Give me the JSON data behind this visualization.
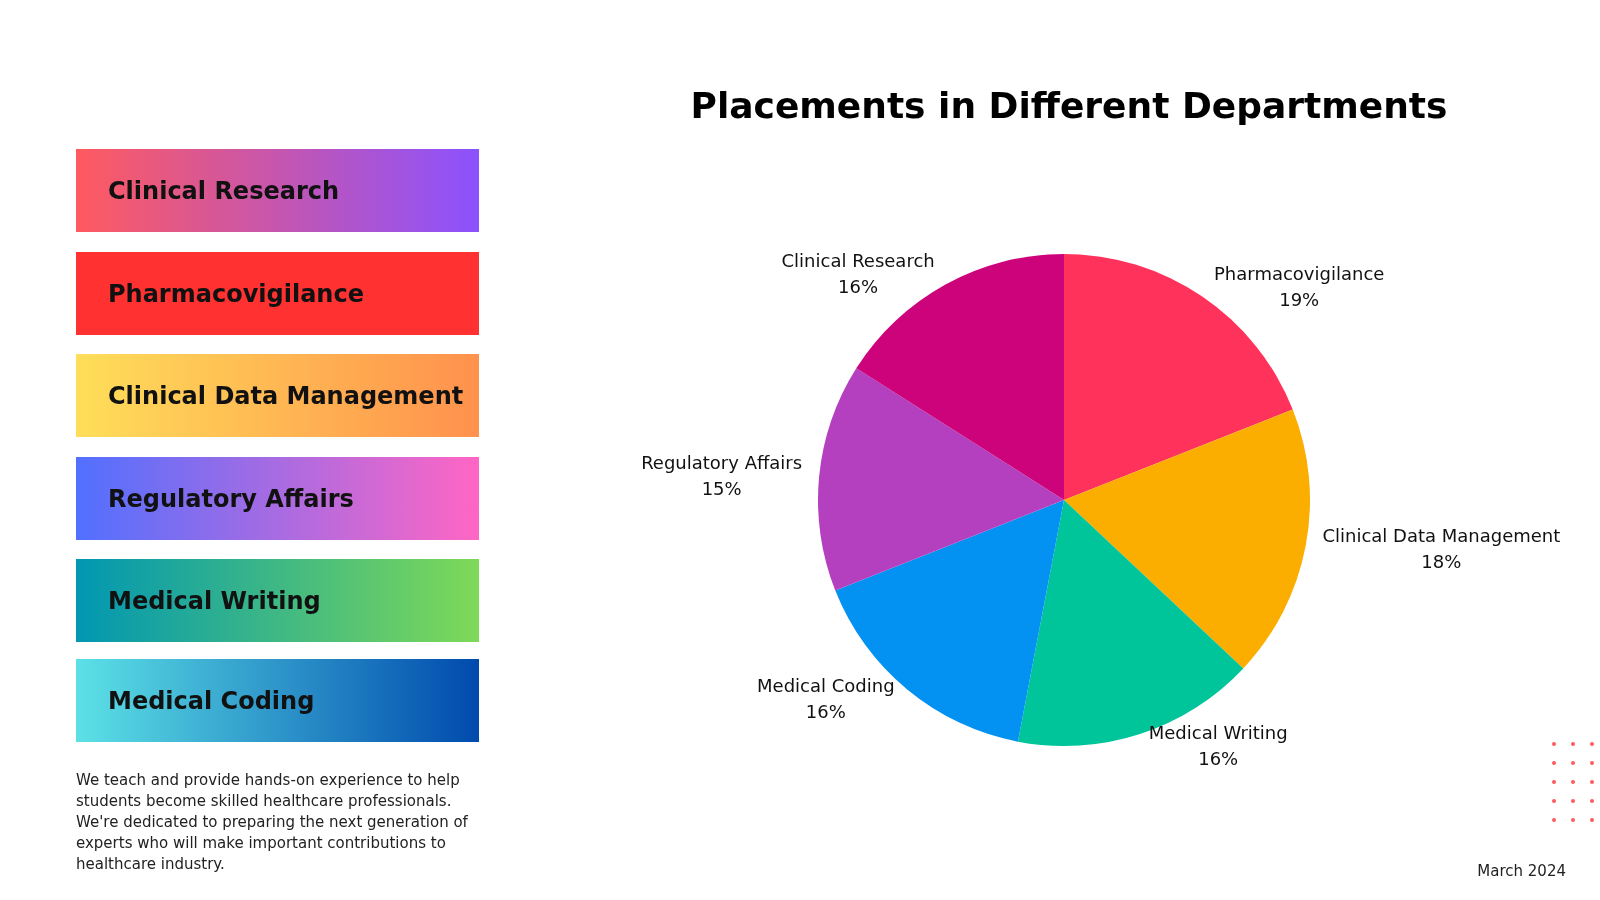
{
  "chart_data": {
    "type": "pie",
    "title": "Placements in Different Departments",
    "categories": [
      "Pharmacovigilance",
      "Clinical Data Management",
      "Medical Writing",
      "Medical Coding",
      "Regulatory Affairs",
      "Clinical Research"
    ],
    "values": [
      19,
      18,
      16,
      16,
      15,
      16
    ],
    "colors": [
      "#ff325b",
      "#fbad00",
      "#00c49a",
      "#0391f2",
      "#b440c0",
      "#cc037a"
    ],
    "value_labels": [
      "19%",
      "18%",
      "16%",
      "16%",
      "15%",
      "16%"
    ],
    "annotations": [
      "We teach and provide hands-on experience to help students become skilled healthcare professionals. We're dedicated to preparing the next generation of experts who will make important contributions to healthcare industry.",
      "March 2024"
    ]
  }
}
